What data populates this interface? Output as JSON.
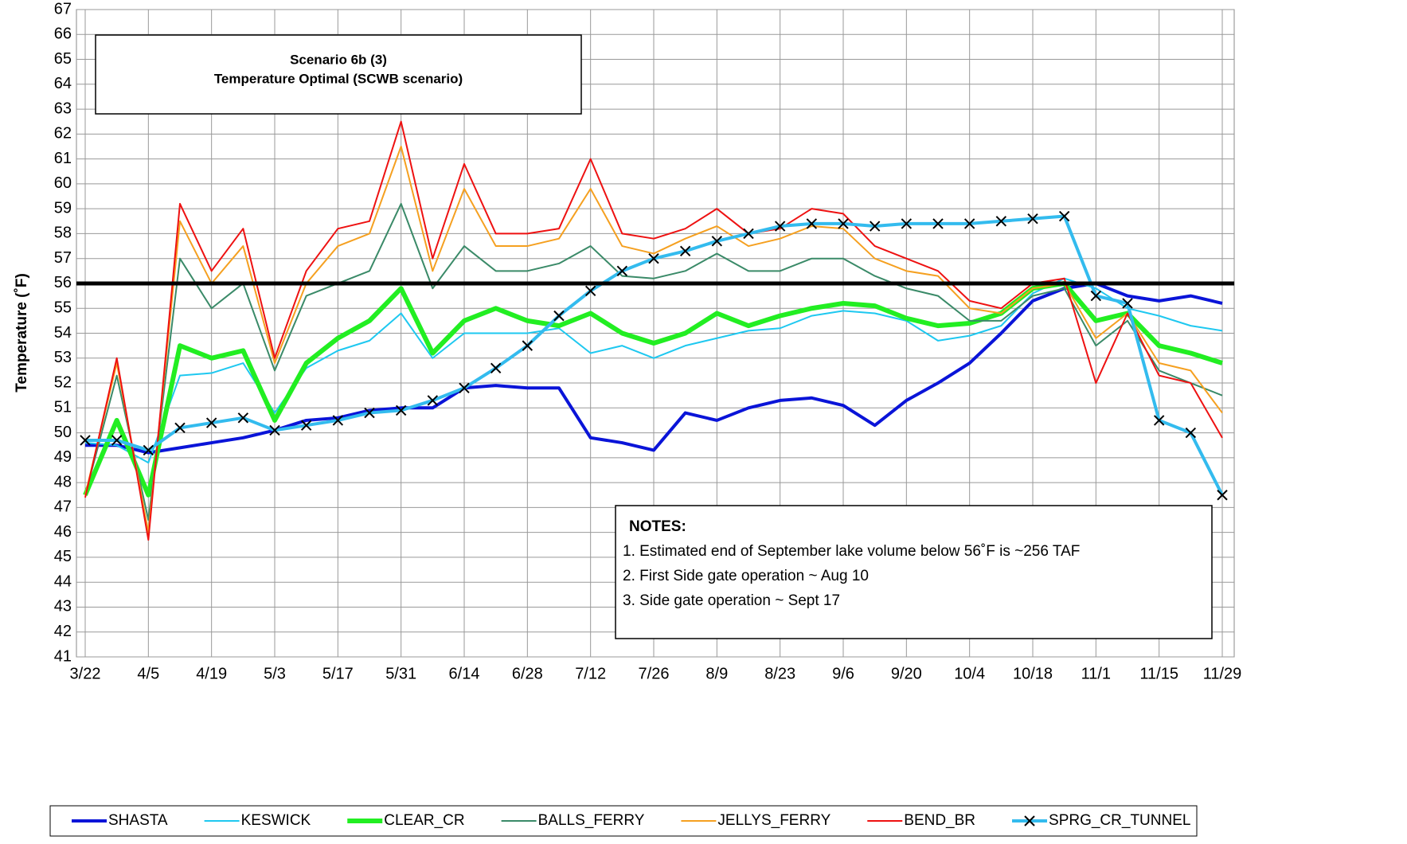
{
  "chart_data": {
    "type": "line",
    "title_lines": [
      "Scenario 6b (3)",
      "Temperature Optimal (SCWB scenario)"
    ],
    "y_label": "Temperature (˚F)",
    "notes": [
      "NOTES:",
      "1. Estimated end of September lake volume below 56˚F is ~256 TAF",
      "2. First Side gate operation ~ Aug 10",
      "3. Side gate operation ~ Sept 17"
    ],
    "categories": [
      "3/22",
      null,
      "4/5",
      null,
      "4/19",
      null,
      "5/3",
      null,
      "5/17",
      null,
      "5/31",
      null,
      "6/14",
      null,
      "6/28",
      null,
      "7/12",
      null,
      "7/26",
      null,
      "8/9",
      null,
      "8/23",
      null,
      "9/6",
      null,
      "9/20",
      null,
      "10/4",
      null,
      "10/18",
      null,
      "11/1",
      null,
      "11/15",
      null,
      "11/29"
    ],
    "ylim": [
      41,
      67
    ],
    "yticks": [
      41,
      42,
      43,
      44,
      45,
      46,
      47,
      48,
      49,
      50,
      51,
      52,
      53,
      54,
      55,
      56,
      57,
      58,
      59,
      60,
      61,
      62,
      63,
      64,
      65,
      66,
      67
    ],
    "grid": true,
    "hline": 56,
    "series": [
      {
        "name": "SHASTA",
        "color": "#0a14d8",
        "width": 4,
        "values": [
          49.5,
          49.5,
          49.2,
          49.4,
          49.6,
          49.8,
          50.1,
          50.5,
          50.6,
          50.9,
          51.0,
          51.0,
          51.8,
          51.9,
          51.8,
          51.8,
          49.8,
          49.6,
          49.3,
          50.8,
          50.5,
          51.0,
          51.3,
          51.4,
          51.1,
          50.3,
          51.3,
          52.0,
          52.8,
          54.0,
          55.3,
          55.8,
          56.0,
          55.5,
          55.3,
          55.5,
          55.2
        ]
      },
      {
        "name": "KESWICK",
        "color": "#1ec8f0",
        "width": 2,
        "values": [
          49.6,
          49.5,
          48.8,
          52.3,
          52.4,
          52.8,
          50.8,
          52.6,
          53.3,
          53.7,
          54.8,
          53.0,
          54.0,
          54.0,
          54.0,
          54.2,
          53.2,
          53.5,
          53.0,
          53.5,
          53.8,
          54.1,
          54.2,
          54.7,
          54.9,
          54.8,
          54.5,
          53.7,
          53.9,
          54.3,
          55.6,
          56.2,
          55.8,
          55.0,
          54.7,
          54.3,
          54.1
        ]
      },
      {
        "name": "CLEAR_CR",
        "color": "#22ee22",
        "width": 6,
        "values": [
          47.5,
          50.5,
          47.5,
          53.5,
          53.0,
          53.3,
          50.5,
          52.8,
          53.8,
          54.5,
          55.8,
          53.2,
          54.5,
          55.0,
          54.5,
          54.3,
          54.8,
          54.0,
          53.6,
          54.0,
          54.8,
          54.3,
          54.7,
          55.0,
          55.2,
          55.1,
          54.6,
          54.3,
          54.4,
          54.8,
          55.8,
          56.0,
          54.5,
          54.8,
          53.5,
          53.2,
          52.8
        ]
      },
      {
        "name": "BALLS_FERRY",
        "color": "#3a8a68",
        "width": 2,
        "values": [
          47.5,
          52.3,
          46.5,
          57.0,
          55.0,
          56.0,
          52.5,
          55.5,
          56.0,
          56.5,
          59.2,
          55.8,
          57.5,
          56.5,
          56.5,
          56.8,
          57.5,
          56.3,
          56.2,
          56.5,
          57.2,
          56.5,
          56.5,
          57.0,
          57.0,
          56.3,
          55.8,
          55.5,
          54.5,
          54.5,
          55.5,
          55.8,
          53.5,
          54.5,
          52.5,
          52.0,
          51.5
        ]
      },
      {
        "name": "JELLYS_FERRY",
        "color": "#f5a020",
        "width": 2,
        "values": [
          47.5,
          52.8,
          46.0,
          58.5,
          56.0,
          57.5,
          52.8,
          56.0,
          57.5,
          58.0,
          61.5,
          56.5,
          59.8,
          57.5,
          57.5,
          57.8,
          59.8,
          57.5,
          57.2,
          57.8,
          58.3,
          57.5,
          57.8,
          58.3,
          58.2,
          57.0,
          56.5,
          56.3,
          55.0,
          54.8,
          55.8,
          56.0,
          53.8,
          54.8,
          52.8,
          52.5,
          50.8
        ]
      },
      {
        "name": "BEND_BR",
        "color": "#ee1111",
        "width": 2,
        "values": [
          47.4,
          53.0,
          45.7,
          59.2,
          56.5,
          58.2,
          53.0,
          56.5,
          58.2,
          58.5,
          62.5,
          57.0,
          60.8,
          58.0,
          58.0,
          58.2,
          61.0,
          58.0,
          57.8,
          58.2,
          59.0,
          58.0,
          58.2,
          59.0,
          58.8,
          57.5,
          57.0,
          56.5,
          55.3,
          55.0,
          56.0,
          56.2,
          52.0,
          54.8,
          52.3,
          52.0,
          49.8
        ]
      },
      {
        "name": "SPRG_CR_TUNNEL",
        "color": "#33bbee",
        "width": 4,
        "marker": "x",
        "values": [
          49.7,
          49.7,
          49.3,
          50.2,
          50.4,
          50.6,
          50.1,
          50.3,
          50.5,
          50.8,
          50.9,
          51.3,
          51.8,
          52.6,
          53.5,
          54.7,
          55.7,
          56.5,
          57.0,
          57.3,
          57.7,
          58.0,
          58.3,
          58.4,
          58.4,
          58.3,
          58.4,
          58.4,
          58.4,
          58.5,
          58.6,
          58.7,
          55.5,
          55.2,
          50.5,
          50.0,
          47.5
        ]
      }
    ]
  }
}
